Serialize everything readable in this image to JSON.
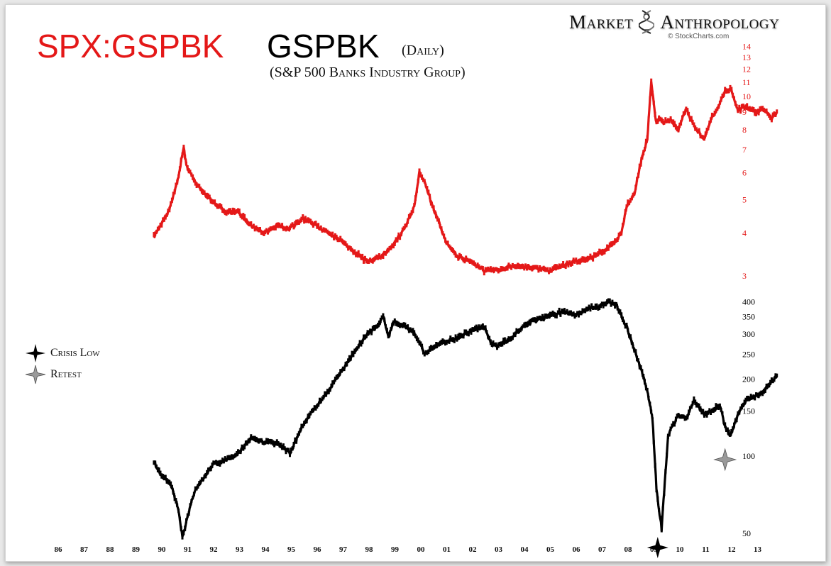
{
  "header": {
    "title_ratio": "SPX:GSPBK",
    "title_symbol": "GSPBK",
    "title_period": "(Daily)",
    "subtitle": "(S&P 500 Banks Industry Group)"
  },
  "branding": {
    "word1": "Market",
    "word2": "Anthropology",
    "source": "© StockCharts.com"
  },
  "legend": {
    "crisis_low": "Crisis Low",
    "retest": "Retest"
  },
  "colors": {
    "ratio": "#e41818",
    "price": "#000000",
    "crisis_marker": "#000000",
    "retest_marker": "#9a9a9a"
  },
  "chart_data": [
    {
      "type": "line",
      "name": "SPX:GSPBK",
      "y_scale": "log",
      "ylim": [
        2.9,
        14.5
      ],
      "y_ticks": [
        "3",
        "4",
        "5",
        "6",
        "7",
        "8",
        "9",
        "10",
        "11",
        "12",
        "13",
        "14"
      ],
      "x": [
        1989.75,
        1990.3,
        1990.65,
        1990.9,
        1991.0,
        1991.3,
        1991.8,
        1992.5,
        1993.0,
        1993.5,
        1994.0,
        1994.5,
        1995.0,
        1995.5,
        1996.0,
        1996.5,
        1997.0,
        1997.5,
        1998.0,
        1998.5,
        1999.0,
        1999.5,
        1999.8,
        2000.0,
        2000.2,
        2000.5,
        2000.8,
        2001.0,
        2001.5,
        2002.0,
        2002.5,
        2002.8,
        2003.0,
        2003.5,
        2004.0,
        2004.5,
        2005.0,
        2005.5,
        2006.0,
        2006.5,
        2007.0,
        2007.5,
        2007.8,
        2008.0,
        2008.3,
        2008.6,
        2008.8,
        2008.95,
        2009.05,
        2009.15,
        2009.25,
        2009.4,
        2009.7,
        2010.0,
        2010.3,
        2010.6,
        2011.0,
        2011.3,
        2011.6,
        2011.8,
        2012.0,
        2012.3,
        2012.6,
        2013.0,
        2013.3,
        2013.6,
        2013.8
      ],
      "y": [
        3.9,
        4.6,
        5.6,
        7.1,
        6.3,
        5.7,
        5.1,
        4.6,
        4.6,
        4.2,
        4.0,
        4.2,
        4.1,
        4.4,
        4.2,
        4.0,
        3.8,
        3.5,
        3.3,
        3.4,
        3.7,
        4.2,
        4.8,
        6.0,
        5.6,
        4.8,
        4.2,
        3.8,
        3.4,
        3.3,
        3.1,
        3.1,
        3.1,
        3.2,
        3.2,
        3.15,
        3.1,
        3.2,
        3.3,
        3.35,
        3.5,
        3.7,
        4.0,
        4.8,
        5.2,
        6.7,
        7.5,
        11.0,
        9.5,
        8.3,
        8.6,
        8.4,
        8.5,
        8.0,
        9.2,
        8.2,
        7.5,
        8.7,
        9.5,
        10.3,
        10.6,
        9.1,
        9.3,
        9.0,
        9.2,
        8.6,
        9.0
      ]
    },
    {
      "type": "line",
      "name": "GSPBK",
      "y_scale": "log",
      "ylim": [
        44,
        420
      ],
      "y_ticks": [
        "50",
        "100",
        "150",
        "200",
        "250",
        "300",
        "350",
        "400"
      ],
      "x": [
        1989.75,
        1990.0,
        1990.4,
        1990.7,
        1990.85,
        1991.0,
        1991.3,
        1991.6,
        1992.0,
        1992.5,
        1993.0,
        1993.5,
        1994.0,
        1994.5,
        1995.0,
        1995.5,
        1996.0,
        1996.5,
        1997.0,
        1997.5,
        1998.0,
        1998.4,
        1998.6,
        1998.8,
        1999.0,
        1999.5,
        1999.8,
        2000.0,
        2000.2,
        2000.5,
        2001.0,
        2001.5,
        2002.0,
        2002.5,
        2002.8,
        2003.0,
        2003.5,
        2004.0,
        2004.5,
        2005.0,
        2005.5,
        2006.0,
        2006.5,
        2007.0,
        2007.3,
        2007.6,
        2008.0,
        2008.3,
        2008.6,
        2008.8,
        2009.0,
        2009.15,
        2009.35,
        2009.6,
        2010.0,
        2010.3,
        2010.6,
        2011.0,
        2011.3,
        2011.6,
        2011.8,
        2012.0,
        2012.3,
        2012.6,
        2013.0,
        2013.3,
        2013.6,
        2013.8
      ],
      "y": [
        95,
        85,
        78,
        62,
        48,
        55,
        72,
        80,
        92,
        96,
        102,
        118,
        113,
        113,
        102,
        132,
        155,
        180,
        215,
        255,
        300,
        320,
        355,
        290,
        335,
        320,
        300,
        280,
        250,
        265,
        280,
        290,
        310,
        320,
        270,
        270,
        285,
        320,
        340,
        350,
        365,
        355,
        375,
        385,
        400,
        390,
        320,
        260,
        210,
        180,
        140,
        75,
        52,
        120,
        145,
        140,
        165,
        145,
        150,
        158,
        130,
        120,
        145,
        165,
        170,
        180,
        195,
        205
      ]
    }
  ],
  "x_axis": {
    "ticks": [
      "86",
      "87",
      "88",
      "89",
      "90",
      "91",
      "92",
      "93",
      "94",
      "95",
      "96",
      "97",
      "98",
      "99",
      "00",
      "01",
      "02",
      "03",
      "04",
      "05",
      "06",
      "07",
      "08",
      "09",
      "10",
      "11",
      "12",
      "13"
    ],
    "range": [
      1986,
      2014
    ]
  },
  "annotations": [
    {
      "label": "crisis_low",
      "x": 2009.2,
      "y": 44
    },
    {
      "label": "retest",
      "x": 2011.8,
      "y": 97
    }
  ]
}
